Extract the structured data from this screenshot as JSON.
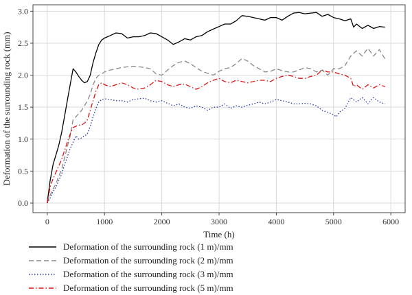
{
  "chart_data": {
    "type": "line",
    "xlabel": "Time (h)",
    "ylabel": "Deformation of the surrounding rock (mm)",
    "xlim": [
      -250,
      6250
    ],
    "ylim": [
      -0.15,
      3.1
    ],
    "x_ticks": [
      0,
      1000,
      2000,
      3000,
      4000,
      5000,
      6000
    ],
    "x_tick_labels": [
      "0",
      "1000",
      "2000",
      "3000",
      "4000",
      "5000",
      "6000"
    ],
    "y_ticks": [
      0.0,
      0.5,
      1.0,
      1.5,
      2.0,
      2.5,
      3.0
    ],
    "y_tick_labels": [
      "0.0",
      "0.5",
      "1.0",
      "1.5",
      "2.0",
      "2.5",
      "3.0"
    ],
    "grid": true,
    "legend_position": "bottom-left, below plot",
    "series": [
      {
        "name": "Deformation of the surrounding rock (1 m)/mm",
        "color": "#000000",
        "style": "solid",
        "points": [
          [
            0,
            0.0
          ],
          [
            50,
            0.35
          ],
          [
            100,
            0.6
          ],
          [
            150,
            0.75
          ],
          [
            200,
            0.9
          ],
          [
            250,
            1.1
          ],
          [
            300,
            1.35
          ],
          [
            350,
            1.6
          ],
          [
            400,
            1.85
          ],
          [
            450,
            2.1
          ],
          [
            500,
            2.05
          ],
          [
            550,
            1.98
          ],
          [
            600,
            1.92
          ],
          [
            650,
            1.88
          ],
          [
            700,
            1.9
          ],
          [
            750,
            2.0
          ],
          [
            800,
            2.2
          ],
          [
            850,
            2.35
          ],
          [
            900,
            2.48
          ],
          [
            950,
            2.55
          ],
          [
            1000,
            2.58
          ],
          [
            1050,
            2.6
          ],
          [
            1100,
            2.62
          ],
          [
            1150,
            2.64
          ],
          [
            1200,
            2.66
          ],
          [
            1300,
            2.65
          ],
          [
            1400,
            2.58
          ],
          [
            1500,
            2.6
          ],
          [
            1600,
            2.6
          ],
          [
            1700,
            2.62
          ],
          [
            1800,
            2.66
          ],
          [
            1900,
            2.65
          ],
          [
            2000,
            2.6
          ],
          [
            2100,
            2.55
          ],
          [
            2200,
            2.48
          ],
          [
            2300,
            2.52
          ],
          [
            2400,
            2.57
          ],
          [
            2500,
            2.55
          ],
          [
            2600,
            2.6
          ],
          [
            2700,
            2.62
          ],
          [
            2800,
            2.68
          ],
          [
            2900,
            2.72
          ],
          [
            3000,
            2.76
          ],
          [
            3100,
            2.8
          ],
          [
            3200,
            2.8
          ],
          [
            3300,
            2.85
          ],
          [
            3400,
            2.93
          ],
          [
            3500,
            2.92
          ],
          [
            3600,
            2.9
          ],
          [
            3700,
            2.88
          ],
          [
            3800,
            2.86
          ],
          [
            3900,
            2.9
          ],
          [
            4000,
            2.9
          ],
          [
            4100,
            2.86
          ],
          [
            4200,
            2.92
          ],
          [
            4300,
            2.97
          ],
          [
            4400,
            2.98
          ],
          [
            4500,
            2.96
          ],
          [
            4600,
            2.97
          ],
          [
            4700,
            2.98
          ],
          [
            4800,
            2.92
          ],
          [
            4900,
            2.95
          ],
          [
            5000,
            2.9
          ],
          [
            5100,
            2.88
          ],
          [
            5200,
            2.85
          ],
          [
            5300,
            2.88
          ],
          [
            5350,
            2.75
          ],
          [
            5400,
            2.8
          ],
          [
            5500,
            2.73
          ],
          [
            5600,
            2.78
          ],
          [
            5700,
            2.73
          ],
          [
            5800,
            2.76
          ],
          [
            5900,
            2.75
          ]
        ]
      },
      {
        "name": "Deformation of the surrounding rock (2 m)/mm",
        "color": "#888888",
        "style": "dashed",
        "points": [
          [
            0,
            0.0
          ],
          [
            50,
            0.12
          ],
          [
            100,
            0.22
          ],
          [
            150,
            0.3
          ],
          [
            200,
            0.42
          ],
          [
            250,
            0.52
          ],
          [
            300,
            0.7
          ],
          [
            350,
            0.88
          ],
          [
            400,
            1.05
          ],
          [
            450,
            1.3
          ],
          [
            500,
            1.35
          ],
          [
            550,
            1.4
          ],
          [
            600,
            1.45
          ],
          [
            650,
            1.52
          ],
          [
            700,
            1.6
          ],
          [
            750,
            1.7
          ],
          [
            800,
            1.85
          ],
          [
            850,
            1.95
          ],
          [
            900,
            2.0
          ],
          [
            950,
            2.02
          ],
          [
            1000,
            2.05
          ],
          [
            1100,
            2.08
          ],
          [
            1200,
            2.1
          ],
          [
            1300,
            2.12
          ],
          [
            1400,
            2.13
          ],
          [
            1500,
            2.14
          ],
          [
            1600,
            2.13
          ],
          [
            1700,
            2.12
          ],
          [
            1800,
            2.1
          ],
          [
            1900,
            2.02
          ],
          [
            2000,
            2.0
          ],
          [
            2100,
            2.08
          ],
          [
            2200,
            2.15
          ],
          [
            2300,
            2.2
          ],
          [
            2400,
            2.22
          ],
          [
            2500,
            2.18
          ],
          [
            2600,
            2.12
          ],
          [
            2700,
            2.06
          ],
          [
            2800,
            2.03
          ],
          [
            2900,
            2.0
          ],
          [
            3000,
            2.06
          ],
          [
            3100,
            2.1
          ],
          [
            3200,
            2.12
          ],
          [
            3300,
            2.18
          ],
          [
            3400,
            2.26
          ],
          [
            3500,
            2.22
          ],
          [
            3600,
            2.15
          ],
          [
            3700,
            2.1
          ],
          [
            3800,
            2.05
          ],
          [
            3900,
            2.06
          ],
          [
            4000,
            2.1
          ],
          [
            4100,
            2.07
          ],
          [
            4200,
            2.05
          ],
          [
            4300,
            2.05
          ],
          [
            4400,
            2.08
          ],
          [
            4500,
            2.12
          ],
          [
            4600,
            2.1
          ],
          [
            4700,
            2.05
          ],
          [
            4800,
            2.08
          ],
          [
            4900,
            2.0
          ],
          [
            5000,
            2.1
          ],
          [
            5100,
            2.1
          ],
          [
            5200,
            2.15
          ],
          [
            5300,
            2.3
          ],
          [
            5400,
            2.38
          ],
          [
            5500,
            2.3
          ],
          [
            5600,
            2.42
          ],
          [
            5700,
            2.3
          ],
          [
            5800,
            2.4
          ],
          [
            5900,
            2.25
          ]
        ]
      },
      {
        "name": "Deformation of the surrounding rock (3 m)/mm",
        "color": "#2233aa",
        "style": "dotted",
        "points": [
          [
            0,
            0.0
          ],
          [
            50,
            0.08
          ],
          [
            100,
            0.18
          ],
          [
            150,
            0.25
          ],
          [
            200,
            0.35
          ],
          [
            250,
            0.45
          ],
          [
            300,
            0.6
          ],
          [
            350,
            0.72
          ],
          [
            400,
            0.85
          ],
          [
            450,
            0.95
          ],
          [
            500,
            1.05
          ],
          [
            550,
            1.0
          ],
          [
            600,
            1.02
          ],
          [
            650,
            1.05
          ],
          [
            700,
            1.08
          ],
          [
            750,
            1.2
          ],
          [
            800,
            1.35
          ],
          [
            850,
            1.48
          ],
          [
            900,
            1.58
          ],
          [
            950,
            1.62
          ],
          [
            1000,
            1.63
          ],
          [
            1100,
            1.62
          ],
          [
            1200,
            1.6
          ],
          [
            1300,
            1.6
          ],
          [
            1400,
            1.58
          ],
          [
            1500,
            1.62
          ],
          [
            1600,
            1.63
          ],
          [
            1700,
            1.64
          ],
          [
            1800,
            1.6
          ],
          [
            1900,
            1.58
          ],
          [
            2000,
            1.6
          ],
          [
            2100,
            1.56
          ],
          [
            2200,
            1.52
          ],
          [
            2300,
            1.55
          ],
          [
            2400,
            1.5
          ],
          [
            2500,
            1.48
          ],
          [
            2600,
            1.52
          ],
          [
            2700,
            1.5
          ],
          [
            2800,
            1.45
          ],
          [
            2900,
            1.5
          ],
          [
            3000,
            1.5
          ],
          [
            3100,
            1.55
          ],
          [
            3200,
            1.48
          ],
          [
            3300,
            1.52
          ],
          [
            3400,
            1.5
          ],
          [
            3500,
            1.53
          ],
          [
            3600,
            1.55
          ],
          [
            3700,
            1.58
          ],
          [
            3800,
            1.55
          ],
          [
            3900,
            1.58
          ],
          [
            4000,
            1.62
          ],
          [
            4100,
            1.6
          ],
          [
            4200,
            1.58
          ],
          [
            4300,
            1.55
          ],
          [
            4400,
            1.55
          ],
          [
            4500,
            1.56
          ],
          [
            4600,
            1.55
          ],
          [
            4700,
            1.52
          ],
          [
            4800,
            1.45
          ],
          [
            4900,
            1.42
          ],
          [
            5000,
            1.38
          ],
          [
            5050,
            1.35
          ],
          [
            5100,
            1.42
          ],
          [
            5200,
            1.48
          ],
          [
            5300,
            1.65
          ],
          [
            5400,
            1.58
          ],
          [
            5500,
            1.65
          ],
          [
            5600,
            1.55
          ],
          [
            5700,
            1.65
          ],
          [
            5800,
            1.58
          ],
          [
            5900,
            1.55
          ]
        ]
      },
      {
        "name": "Deformation of the surrounding rock (5 m)/mm",
        "color": "#dd1111",
        "style": "dashdot",
        "points": [
          [
            0,
            0.0
          ],
          [
            50,
            0.25
          ],
          [
            100,
            0.38
          ],
          [
            150,
            0.48
          ],
          [
            200,
            0.58
          ],
          [
            250,
            0.68
          ],
          [
            300,
            0.82
          ],
          [
            350,
            0.95
          ],
          [
            400,
            1.08
          ],
          [
            450,
            1.18
          ],
          [
            500,
            1.2
          ],
          [
            550,
            1.22
          ],
          [
            600,
            1.22
          ],
          [
            650,
            1.25
          ],
          [
            700,
            1.3
          ],
          [
            750,
            1.45
          ],
          [
            800,
            1.6
          ],
          [
            850,
            1.75
          ],
          [
            900,
            1.85
          ],
          [
            950,
            1.88
          ],
          [
            1000,
            1.85
          ],
          [
            1100,
            1.82
          ],
          [
            1200,
            1.85
          ],
          [
            1300,
            1.88
          ],
          [
            1400,
            1.85
          ],
          [
            1500,
            1.8
          ],
          [
            1600,
            1.78
          ],
          [
            1700,
            1.8
          ],
          [
            1800,
            1.85
          ],
          [
            1900,
            1.92
          ],
          [
            2000,
            1.9
          ],
          [
            2100,
            1.85
          ],
          [
            2200,
            1.82
          ],
          [
            2300,
            1.85
          ],
          [
            2400,
            1.86
          ],
          [
            2500,
            1.82
          ],
          [
            2600,
            1.78
          ],
          [
            2700,
            1.82
          ],
          [
            2800,
            1.88
          ],
          [
            2900,
            1.92
          ],
          [
            3000,
            1.95
          ],
          [
            3100,
            1.9
          ],
          [
            3200,
            1.88
          ],
          [
            3300,
            1.92
          ],
          [
            3400,
            1.9
          ],
          [
            3500,
            1.88
          ],
          [
            3600,
            1.9
          ],
          [
            3700,
            1.92
          ],
          [
            3800,
            1.92
          ],
          [
            3900,
            1.9
          ],
          [
            4000,
            1.95
          ],
          [
            4100,
            1.98
          ],
          [
            4200,
            2.0
          ],
          [
            4300,
            1.98
          ],
          [
            4400,
            1.95
          ],
          [
            4500,
            1.95
          ],
          [
            4600,
            1.98
          ],
          [
            4700,
            2.0
          ],
          [
            4800,
            2.08
          ],
          [
            4900,
            2.05
          ],
          [
            5000,
            2.05
          ],
          [
            5100,
            2.02
          ],
          [
            5200,
            2.0
          ],
          [
            5300,
            1.95
          ],
          [
            5350,
            1.82
          ],
          [
            5400,
            1.85
          ],
          [
            5500,
            1.78
          ],
          [
            5600,
            1.85
          ],
          [
            5700,
            1.8
          ],
          [
            5800,
            1.85
          ],
          [
            5900,
            1.82
          ]
        ]
      }
    ]
  }
}
